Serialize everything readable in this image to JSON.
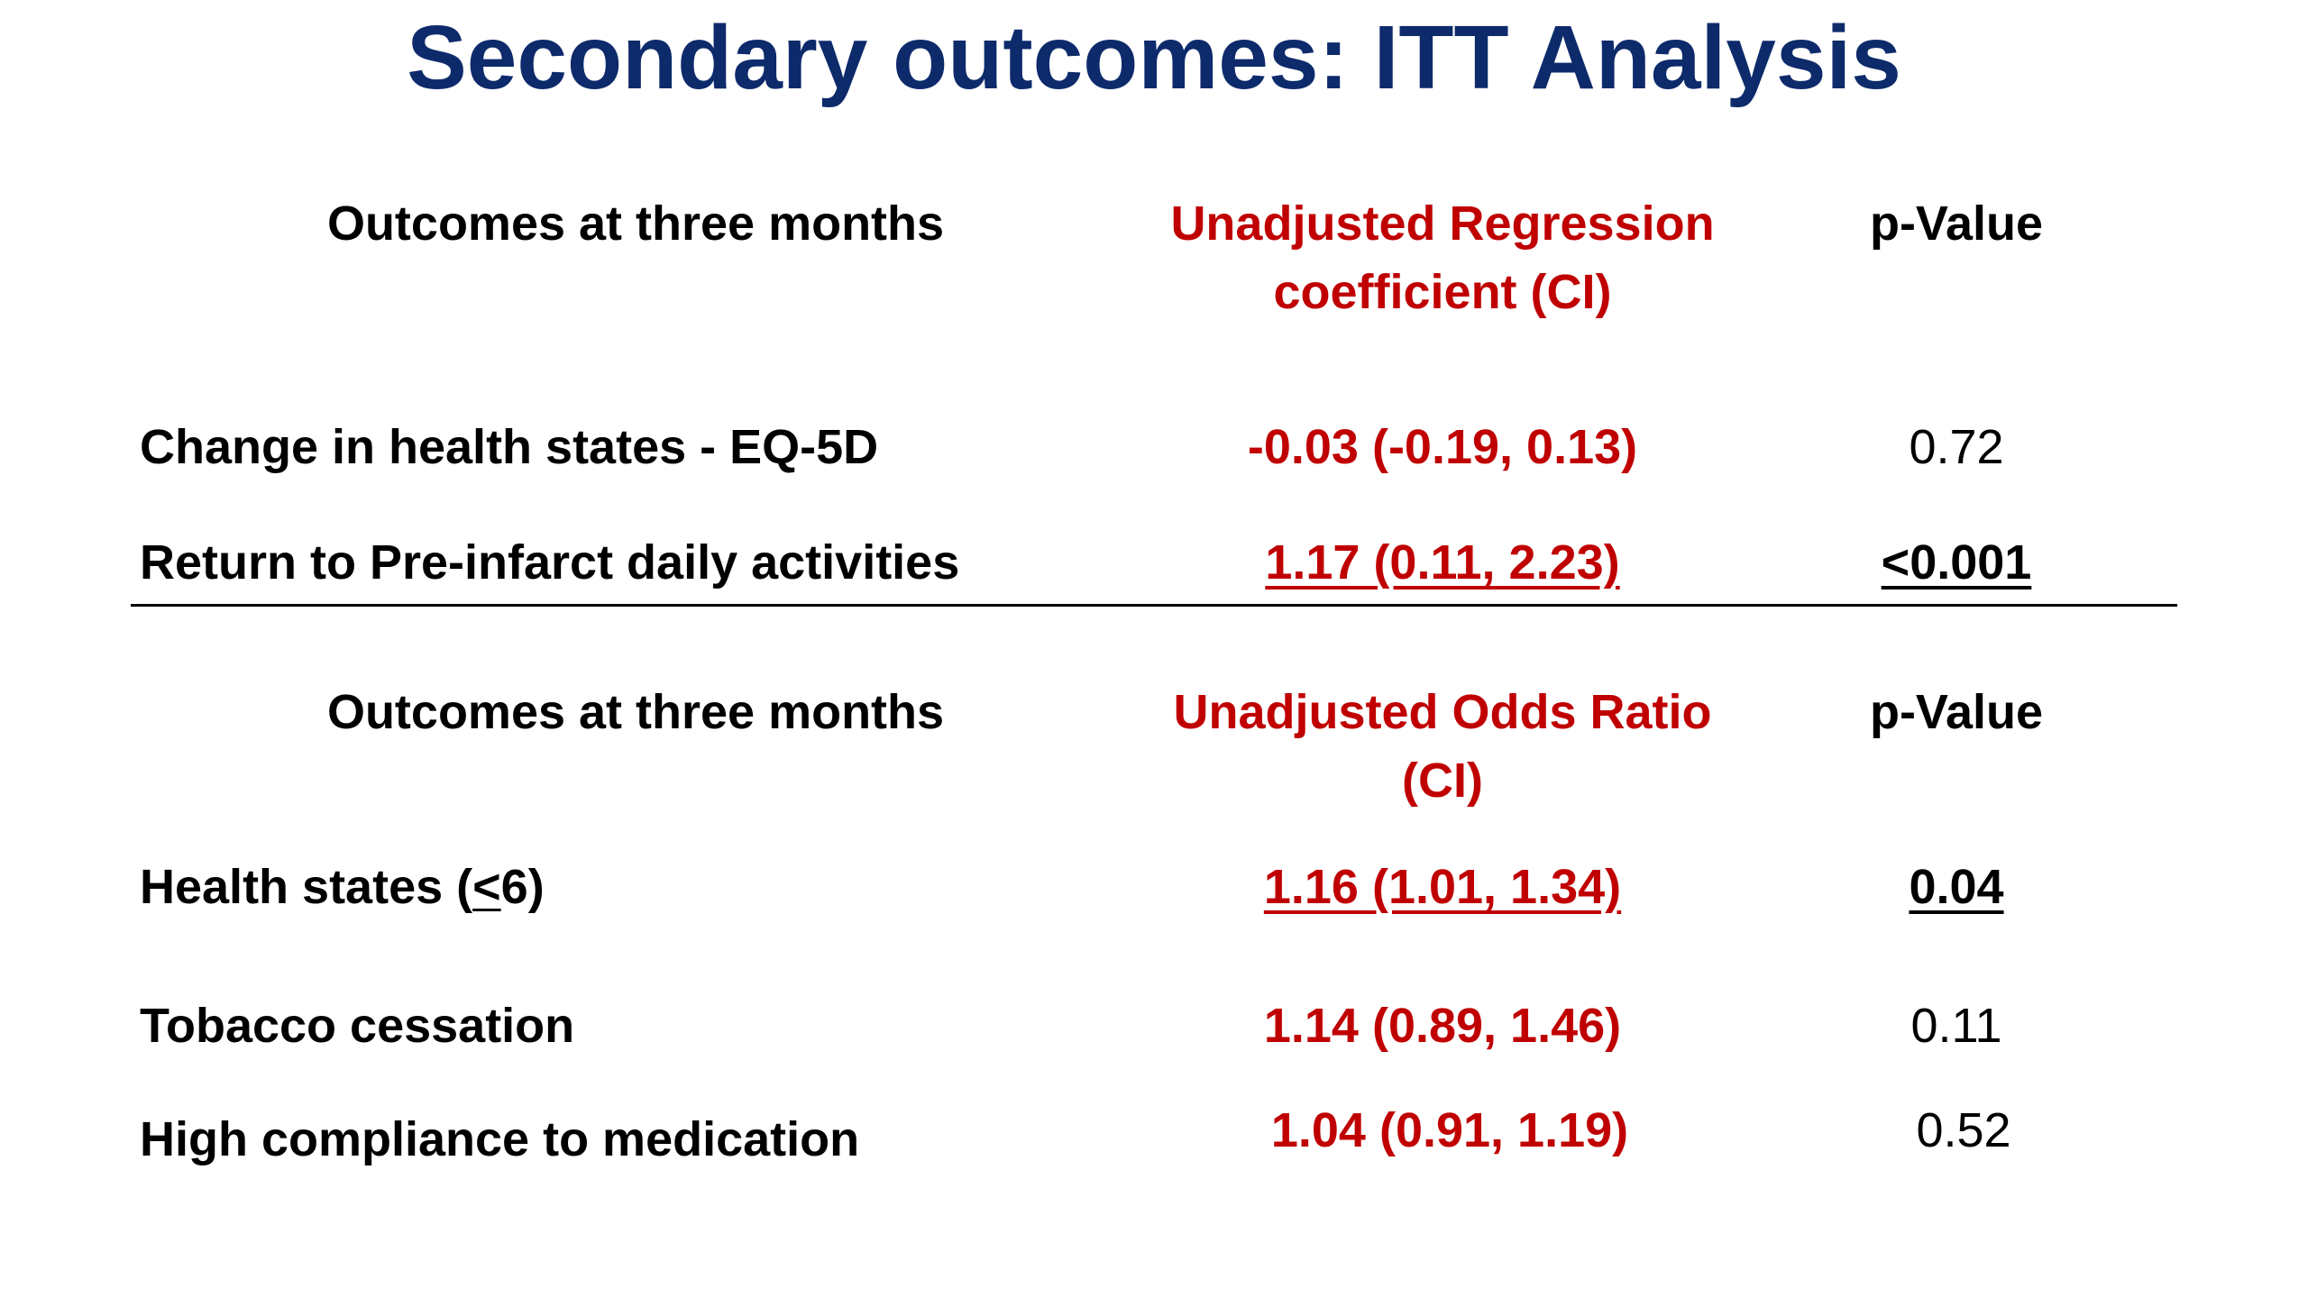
{
  "title": "Secondary outcomes: ITT Analysis",
  "colors": {
    "title": "#0d2a6b",
    "accent_red": "#c00000",
    "text": "#000000",
    "background": "#ffffff"
  },
  "table1": {
    "headers": {
      "outcome": "Outcomes at three months",
      "estimate_line1": "Unadjusted Regression",
      "estimate_line2": "coefficient (CI)",
      "pvalue": "p-Value"
    },
    "rows": [
      {
        "outcome": "Change in health states - EQ-5D",
        "estimate": "-0.03 (-0.19, 0.13)",
        "pvalue": "0.72",
        "emphasized": false
      },
      {
        "outcome": "Return to Pre-infarct daily activities",
        "estimate": "1.17 (0.11, 2.23)",
        "pvalue": "<0.001",
        "emphasized": true
      }
    ]
  },
  "table2": {
    "headers": {
      "outcome": "Outcomes at three months",
      "estimate_line1": "Unadjusted Odds Ratio",
      "estimate_line2": "(CI)",
      "pvalue": "p-Value"
    },
    "rows": [
      {
        "outcome_prefix": "Health states (",
        "outcome_symbol": "<",
        "outcome_suffix": "6)",
        "estimate": "1.16 (1.01, 1.34)",
        "pvalue": "0.04",
        "emphasized": true
      },
      {
        "outcome": "Tobacco cessation",
        "estimate": "1.14 (0.89, 1.46)",
        "pvalue": "0.11",
        "emphasized": false
      },
      {
        "outcome": "High compliance to medication",
        "estimate": "1.04 (0.91, 1.19)",
        "pvalue": "0.52",
        "emphasized": false
      }
    ]
  }
}
